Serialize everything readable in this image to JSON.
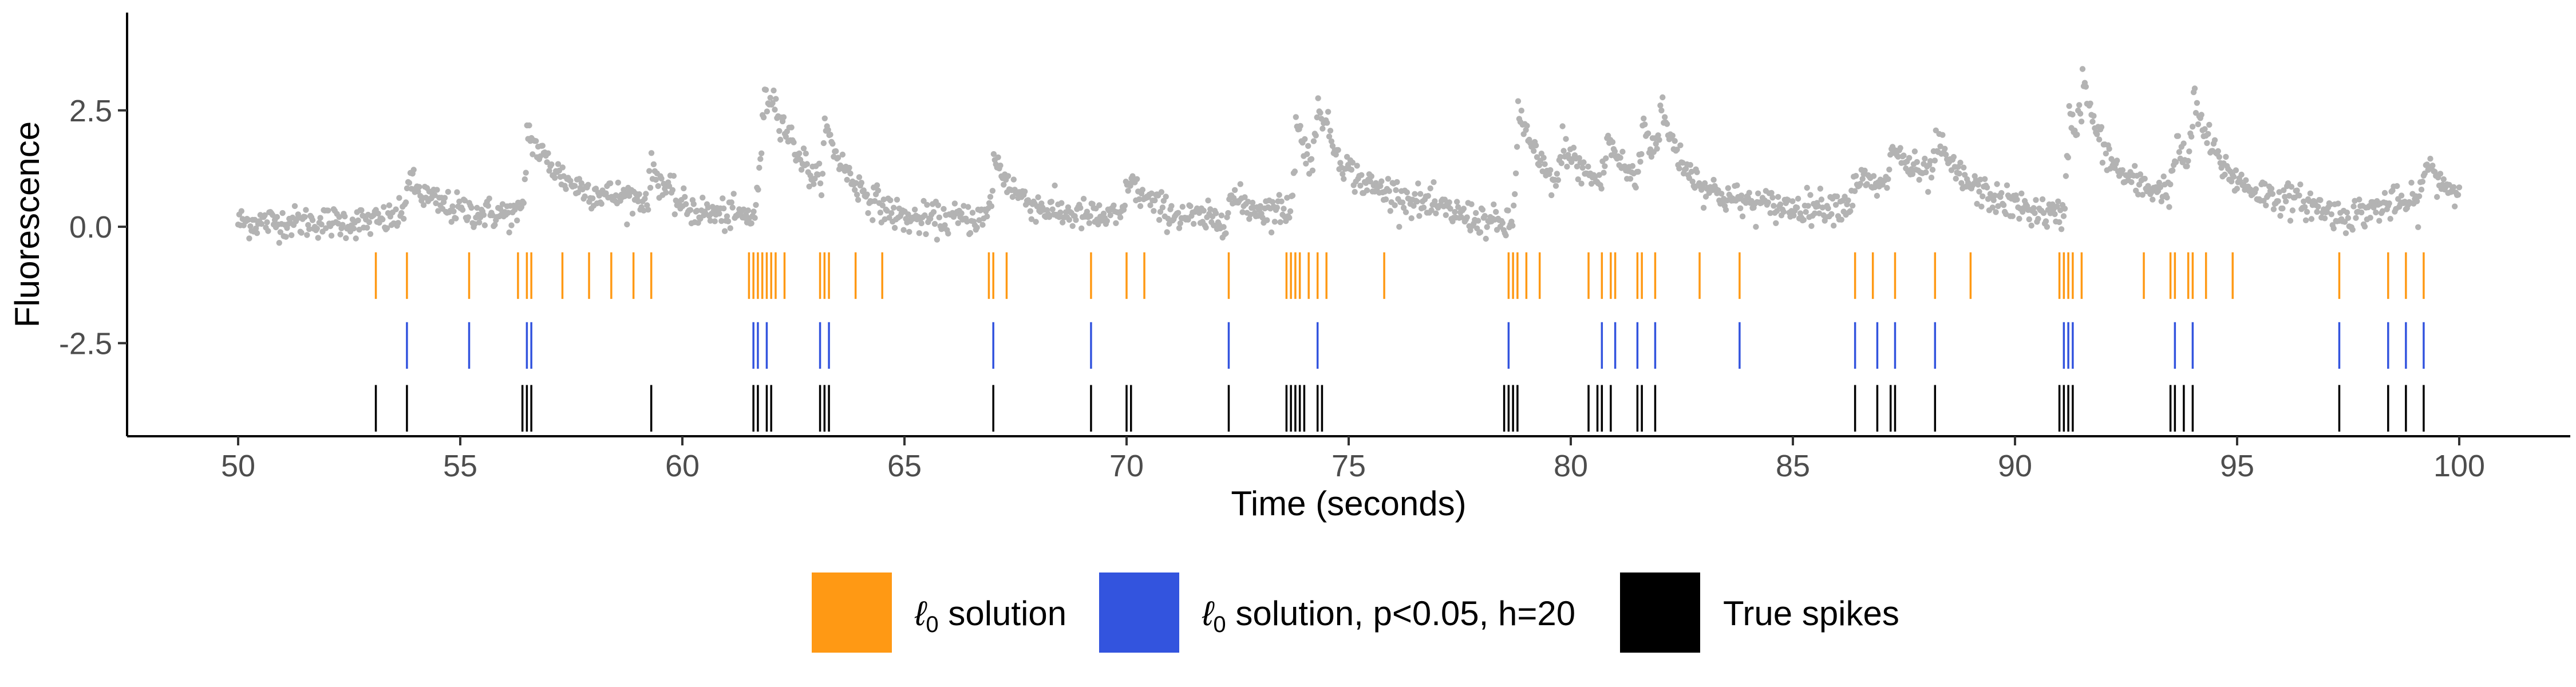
{
  "chart_data": {
    "type": "scatter",
    "title": "",
    "xlabel": "Time (seconds)",
    "ylabel": "Fluorescence",
    "xlim": [
      47.5,
      102.5
    ],
    "ylim": [
      -4.5,
      4.6
    ],
    "x_ticks": [
      50,
      55,
      60,
      65,
      70,
      75,
      80,
      85,
      90,
      95,
      100
    ],
    "x_tick_labels": [
      "50",
      "55",
      "60",
      "65",
      "70",
      "75",
      "80",
      "85",
      "90",
      "95",
      "100"
    ],
    "y_ticks": [
      2.5,
      0.0,
      -2.5
    ],
    "y_tick_labels": [
      "2.5",
      "0.0",
      "-2.5"
    ],
    "grid": false,
    "legend_position": "bottom",
    "colors": {
      "fluorescence": "#b3b3b3",
      "l0_solution": "#ff9914",
      "l0_solution_filtered": "#3354de",
      "true_spikes": "#000000"
    },
    "fluorescence": {
      "x_range": [
        50.0,
        100.0
      ],
      "baseline": [
        [
          50,
          0.1
        ],
        [
          53,
          0.1
        ],
        [
          54,
          0.25
        ],
        [
          56.4,
          0.25
        ],
        [
          57,
          0.6
        ],
        [
          59,
          0.6
        ],
        [
          60,
          0.2
        ],
        [
          61.6,
          0.2
        ],
        [
          62,
          1.8
        ],
        [
          63,
          0.8
        ],
        [
          65,
          0.1
        ],
        [
          67,
          0.2
        ],
        [
          69,
          0.2
        ],
        [
          72,
          0.1
        ],
        [
          73.6,
          0.3
        ],
        [
          76,
          0.6
        ],
        [
          78.6,
          0.0
        ],
        [
          80.5,
          0.6
        ],
        [
          85,
          0.4
        ],
        [
          86.4,
          0.5
        ],
        [
          88,
          0.8
        ],
        [
          90,
          0.4
        ],
        [
          91,
          0.2
        ],
        [
          93.5,
          0.7
        ],
        [
          96.5,
          0.5
        ],
        [
          97.4,
          0.2
        ],
        [
          98.5,
          0.5
        ],
        [
          100,
          0.5
        ]
      ],
      "transients": [
        [
          53.8,
          0.8
        ],
        [
          56.5,
          1.8
        ],
        [
          59.3,
          0.8
        ],
        [
          61.8,
          1.5
        ],
        [
          63.2,
          1.3
        ],
        [
          67.0,
          1.3
        ],
        [
          70.0,
          0.9
        ],
        [
          72.3,
          0.5
        ],
        [
          73.8,
          1.9
        ],
        [
          74.3,
          1.6
        ],
        [
          78.8,
          2.6
        ],
        [
          79.8,
          1.0
        ],
        [
          80.8,
          1.1
        ],
        [
          81.6,
          1.4
        ],
        [
          82.0,
          1.2
        ],
        [
          86.4,
          0.6
        ],
        [
          87.2,
          1.0
        ],
        [
          88.2,
          0.9
        ],
        [
          91.2,
          2.4
        ],
        [
          91.5,
          1.5
        ],
        [
          93.6,
          1.0
        ],
        [
          94.0,
          1.6
        ],
        [
          99.2,
          0.9
        ]
      ]
    },
    "series": [
      {
        "name": "ℓ0 solution",
        "y": -1.05,
        "spikes": [
          53.1,
          53.8,
          55.2,
          56.3,
          56.5,
          56.6,
          57.3,
          57.9,
          58.4,
          58.9,
          59.3,
          61.5,
          61.6,
          61.7,
          61.8,
          61.9,
          62.0,
          62.1,
          62.3,
          63.1,
          63.2,
          63.3,
          63.9,
          64.5,
          66.9,
          67.0,
          67.3,
          69.2,
          70.0,
          70.4,
          72.3,
          73.6,
          73.7,
          73.8,
          73.9,
          74.1,
          74.3,
          74.5,
          75.8,
          78.6,
          78.7,
          78.8,
          79.0,
          79.3,
          80.4,
          80.7,
          80.9,
          81.0,
          81.5,
          81.6,
          81.9,
          82.9,
          83.8,
          86.4,
          86.8,
          87.3,
          88.2,
          89.0,
          91.0,
          91.1,
          91.2,
          91.3,
          91.5,
          92.9,
          93.5,
          93.6,
          93.9,
          94.0,
          94.3,
          94.9,
          97.3,
          98.4,
          98.8,
          99.2
        ]
      },
      {
        "name": "ℓ0 solution, p<0.05, h=20",
        "y": -2.55,
        "spikes": [
          53.8,
          55.2,
          56.5,
          56.6,
          61.6,
          61.7,
          61.9,
          63.1,
          63.3,
          67.0,
          69.2,
          72.3,
          74.3,
          78.6,
          80.7,
          81.0,
          81.5,
          81.9,
          83.8,
          86.4,
          86.9,
          87.3,
          88.2,
          91.1,
          91.2,
          91.3,
          93.6,
          94.0,
          97.3,
          98.4,
          98.8,
          99.2
        ]
      },
      {
        "name": "True spikes",
        "y": -3.9,
        "spikes": [
          53.1,
          53.8,
          56.4,
          56.5,
          56.6,
          59.3,
          61.6,
          61.7,
          61.9,
          62.0,
          63.1,
          63.2,
          63.3,
          67.0,
          69.2,
          70.0,
          70.1,
          72.3,
          73.6,
          73.7,
          73.8,
          73.9,
          74.0,
          74.3,
          74.4,
          78.5,
          78.6,
          78.7,
          78.8,
          80.4,
          80.6,
          80.7,
          80.9,
          81.5,
          81.6,
          81.9,
          86.4,
          86.9,
          87.2,
          87.3,
          88.2,
          91.0,
          91.1,
          91.2,
          91.3,
          93.5,
          93.6,
          93.8,
          94.0,
          97.3,
          98.4,
          98.8,
          99.2
        ]
      }
    ],
    "legend": [
      {
        "key": "l0",
        "symbol": "ℓ",
        "sub": "0",
        "rest": " solution",
        "color": "#ff9914"
      },
      {
        "key": "l0f",
        "symbol": "ℓ",
        "sub": "0",
        "rest": " solution, p<0.05, h=20",
        "color": "#3354de"
      },
      {
        "key": "true",
        "symbol": "",
        "sub": "",
        "rest": "True spikes",
        "color": "#000000"
      }
    ]
  }
}
